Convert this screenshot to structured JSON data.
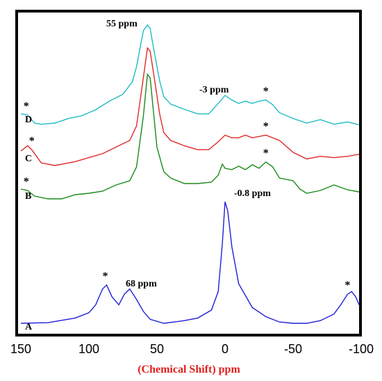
{
  "chart_data": {
    "type": "line",
    "xlabel": "(Chemical Shift) ppm",
    "xlabel_color": "#e0201e",
    "xlim": [
      150,
      -100
    ],
    "x_reversed": true,
    "x_ticks": [
      150,
      100,
      50,
      0,
      -50,
      -100
    ],
    "x_tick_labels": [
      "150",
      "100",
      "50",
      "0",
      "-50",
      "-100"
    ],
    "grid": false,
    "stacked_offset": true,
    "series": [
      {
        "name": "A",
        "color": "#1f1fd6",
        "points": [
          [
            150,
            0
          ],
          [
            130,
            0.5
          ],
          [
            110,
            4
          ],
          [
            100,
            8
          ],
          [
            95,
            14
          ],
          [
            90,
            26
          ],
          [
            87,
            29
          ],
          [
            83,
            20
          ],
          [
            78,
            14
          ],
          [
            74,
            22
          ],
          [
            70,
            26
          ],
          [
            65,
            18
          ],
          [
            60,
            9
          ],
          [
            55,
            3
          ],
          [
            45,
            0
          ],
          [
            30,
            2
          ],
          [
            20,
            4
          ],
          [
            10,
            10
          ],
          [
            5,
            24
          ],
          [
            2,
            60
          ],
          [
            0,
            92
          ],
          [
            -2,
            85
          ],
          [
            -5,
            58
          ],
          [
            -10,
            30
          ],
          [
            -20,
            12
          ],
          [
            -30,
            5
          ],
          [
            -40,
            1
          ],
          [
            -50,
            0
          ],
          [
            -60,
            0
          ],
          [
            -70,
            2
          ],
          [
            -80,
            7
          ],
          [
            -85,
            14
          ],
          [
            -90,
            22
          ],
          [
            -93,
            24
          ],
          [
            -96,
            20
          ],
          [
            -100,
            14
          ]
        ]
      },
      {
        "name": "B",
        "color": "#1a8a1a",
        "points": [
          [
            150,
            20
          ],
          [
            145,
            18
          ],
          [
            140,
            10
          ],
          [
            130,
            6
          ],
          [
            120,
            6
          ],
          [
            110,
            12
          ],
          [
            100,
            14
          ],
          [
            90,
            17
          ],
          [
            80,
            26
          ],
          [
            70,
            32
          ],
          [
            65,
            52
          ],
          [
            60,
            125
          ],
          [
            57,
            185
          ],
          [
            55,
            180
          ],
          [
            53,
            140
          ],
          [
            50,
            80
          ],
          [
            45,
            45
          ],
          [
            40,
            36
          ],
          [
            30,
            28
          ],
          [
            20,
            28
          ],
          [
            10,
            30
          ],
          [
            5,
            40
          ],
          [
            2,
            56
          ],
          [
            0,
            50
          ],
          [
            -5,
            48
          ],
          [
            -10,
            53
          ],
          [
            -15,
            48
          ],
          [
            -20,
            55
          ],
          [
            -25,
            50
          ],
          [
            -30,
            59
          ],
          [
            -35,
            52
          ],
          [
            -40,
            36
          ],
          [
            -50,
            32
          ],
          [
            -55,
            20
          ],
          [
            -60,
            14
          ],
          [
            -70,
            18
          ],
          [
            -80,
            26
          ],
          [
            -90,
            19
          ],
          [
            -100,
            16
          ]
        ]
      },
      {
        "name": "C",
        "color": "#e02828",
        "points": [
          [
            150,
            24
          ],
          [
            145,
            32
          ],
          [
            142,
            26
          ],
          [
            135,
            6
          ],
          [
            125,
            2
          ],
          [
            120,
            4
          ],
          [
            110,
            8
          ],
          [
            100,
            14
          ],
          [
            90,
            20
          ],
          [
            80,
            30
          ],
          [
            70,
            40
          ],
          [
            65,
            62
          ],
          [
            60,
            135
          ],
          [
            57,
            180
          ],
          [
            55,
            175
          ],
          [
            52,
            135
          ],
          [
            48,
            80
          ],
          [
            45,
            52
          ],
          [
            40,
            40
          ],
          [
            30,
            32
          ],
          [
            20,
            26
          ],
          [
            12,
            26
          ],
          [
            5,
            38
          ],
          [
            0,
            48
          ],
          [
            -5,
            44
          ],
          [
            -10,
            44
          ],
          [
            -15,
            48
          ],
          [
            -20,
            44
          ],
          [
            -30,
            48
          ],
          [
            -40,
            40
          ],
          [
            -50,
            22
          ],
          [
            -60,
            12
          ],
          [
            -70,
            16
          ],
          [
            -80,
            14
          ],
          [
            -90,
            16
          ],
          [
            -100,
            19
          ]
        ]
      },
      {
        "name": "D",
        "color": "#1fbcc4",
        "points": [
          [
            150,
            28
          ],
          [
            145,
            26
          ],
          [
            140,
            12
          ],
          [
            135,
            10
          ],
          [
            125,
            12
          ],
          [
            115,
            20
          ],
          [
            105,
            25
          ],
          [
            95,
            35
          ],
          [
            85,
            50
          ],
          [
            75,
            62
          ],
          [
            68,
            84
          ],
          [
            65,
            110
          ],
          [
            60,
            172
          ],
          [
            57,
            182
          ],
          [
            55,
            176
          ],
          [
            52,
            135
          ],
          [
            48,
            85
          ],
          [
            45,
            58
          ],
          [
            40,
            45
          ],
          [
            30,
            36
          ],
          [
            20,
            28
          ],
          [
            12,
            28
          ],
          [
            5,
            46
          ],
          [
            0,
            60
          ],
          [
            -5,
            52
          ],
          [
            -10,
            46
          ],
          [
            -15,
            50
          ],
          [
            -20,
            46
          ],
          [
            -25,
            50
          ],
          [
            -30,
            52
          ],
          [
            -35,
            44
          ],
          [
            -40,
            30
          ],
          [
            -50,
            20
          ],
          [
            -60,
            12
          ],
          [
            -70,
            18
          ],
          [
            -80,
            10
          ],
          [
            -90,
            14
          ],
          [
            -100,
            9
          ]
        ]
      }
    ],
    "annotations": [
      {
        "text": "55 ppm",
        "x": 67
      },
      {
        "text": "-3 ppm",
        "x": 0
      },
      {
        "text": "-0.8 ppm",
        "x": -18
      },
      {
        "text": "68 ppm",
        "x": 70
      }
    ],
    "star_marker": "*"
  }
}
